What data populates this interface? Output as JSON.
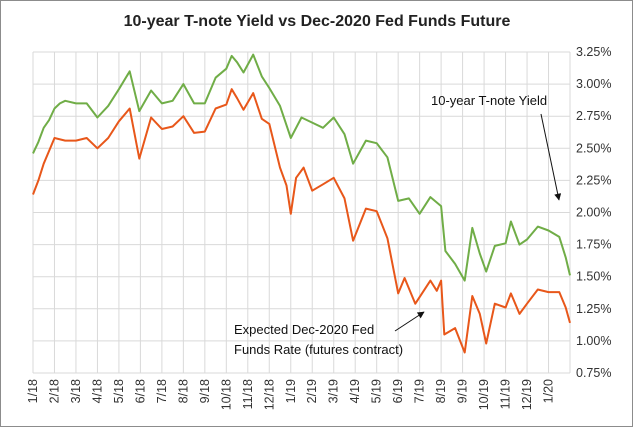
{
  "chart_data": {
    "type": "line",
    "title": "10-year T-note Yield vs Dec-2020 Fed Funds Future",
    "xlabel": "",
    "ylabel": "",
    "x_unit": "months since Jan 2018",
    "x_tick_labels": [
      "1/18",
      "2/18",
      "3/18",
      "4/18",
      "5/18",
      "6/18",
      "7/18",
      "8/18",
      "9/18",
      "10/18",
      "11/18",
      "12/18",
      "1/19",
      "2/19",
      "3/19",
      "4/19",
      "5/19",
      "6/19",
      "7/19",
      "8/19",
      "9/19",
      "10/19",
      "11/19",
      "12/19",
      "1/20"
    ],
    "y_tick_labels": [
      "0.75%",
      "1.00%",
      "1.25%",
      "1.50%",
      "1.75%",
      "2.00%",
      "2.25%",
      "2.50%",
      "2.75%",
      "3.00%",
      "3.25%"
    ],
    "ylim": [
      0.75,
      3.25
    ],
    "xlim": [
      0,
      25
    ],
    "grid": true,
    "y_axis_side": "right",
    "series": [
      {
        "name": "10-year T-note Yield",
        "color": "#70ad47",
        "x": [
          0,
          0.25,
          0.5,
          0.75,
          1,
          1.25,
          1.5,
          2,
          2.5,
          3,
          3.5,
          4,
          4.5,
          4.95,
          5.5,
          6,
          6.5,
          7,
          7.5,
          8,
          8.5,
          9,
          9.25,
          9.5,
          9.8,
          10.25,
          10.65,
          11,
          11.5,
          12,
          12.5,
          13,
          13.5,
          14,
          14.5,
          14.9,
          15.5,
          16,
          16.5,
          17,
          17.5,
          18,
          18.5,
          19,
          19.2,
          19.65,
          20.1,
          20.45,
          20.8,
          21.1,
          21.5,
          22,
          22.25,
          22.65,
          23,
          23.5,
          24,
          24.5,
          24.8,
          25
        ],
        "values": [
          2.46,
          2.55,
          2.66,
          2.72,
          2.81,
          2.85,
          2.87,
          2.85,
          2.85,
          2.74,
          2.83,
          2.96,
          3.1,
          2.79,
          2.95,
          2.85,
          2.87,
          3.0,
          2.85,
          2.85,
          3.05,
          3.12,
          3.22,
          3.17,
          3.09,
          3.23,
          3.06,
          2.97,
          2.83,
          2.58,
          2.74,
          2.7,
          2.66,
          2.74,
          2.61,
          2.38,
          2.56,
          2.54,
          2.43,
          2.09,
          2.11,
          1.99,
          2.12,
          2.05,
          1.7,
          1.6,
          1.47,
          1.88,
          1.68,
          1.54,
          1.74,
          1.76,
          1.93,
          1.75,
          1.79,
          1.89,
          1.86,
          1.81,
          1.65,
          1.51
        ]
      },
      {
        "name": "Expected Dec-2020 Fed Funds Rate (futures contract)",
        "color": "#e8571a",
        "x": [
          0,
          0.25,
          0.5,
          0.75,
          1,
          1.5,
          2,
          2.5,
          3,
          3.5,
          4,
          4.5,
          4.95,
          5.5,
          6,
          6.5,
          7,
          7.5,
          8,
          8.5,
          9,
          9.25,
          9.5,
          9.8,
          10.25,
          10.65,
          11,
          11.5,
          11.8,
          12,
          12.25,
          12.6,
          13,
          13.5,
          14,
          14.5,
          14.9,
          15.5,
          16,
          16.5,
          17,
          17.3,
          17.8,
          18.5,
          18.8,
          19,
          19.15,
          19.65,
          20.1,
          20.45,
          20.8,
          21.1,
          21.5,
          22,
          22.25,
          22.65,
          23,
          23.5,
          24,
          24.5,
          24.8,
          25
        ],
        "values": [
          2.14,
          2.25,
          2.38,
          2.48,
          2.58,
          2.56,
          2.56,
          2.58,
          2.5,
          2.58,
          2.71,
          2.81,
          2.42,
          2.74,
          2.65,
          2.67,
          2.75,
          2.62,
          2.63,
          2.81,
          2.84,
          2.96,
          2.89,
          2.8,
          2.93,
          2.73,
          2.69,
          2.35,
          2.21,
          1.99,
          2.27,
          2.35,
          2.17,
          2.22,
          2.27,
          2.11,
          1.78,
          2.03,
          2.01,
          1.8,
          1.37,
          1.49,
          1.29,
          1.47,
          1.39,
          1.47,
          1.05,
          1.1,
          0.91,
          1.35,
          1.21,
          0.98,
          1.29,
          1.26,
          1.37,
          1.21,
          1.29,
          1.4,
          1.38,
          1.38,
          1.26,
          1.14
        ]
      }
    ],
    "annotations": [
      {
        "text": "10-year T-note Yield",
        "points_to": "10-year T-note Yield"
      },
      {
        "text_lines": [
          "Expected Dec-2020 Fed",
          "Funds Rate (futures contract)"
        ],
        "points_to": "Expected Dec-2020 Fed Funds Rate (futures contract)"
      }
    ]
  }
}
